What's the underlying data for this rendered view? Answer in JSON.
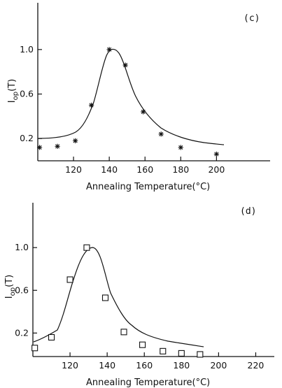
{
  "chart_data": [
    {
      "type": "scatter",
      "panel_label": "(c)",
      "xlabel": "Annealing Temperature(°C)",
      "ylabel_main": "I",
      "ylabel_sub": "op",
      "ylabel_tail": "(T)",
      "xlim": [
        100,
        230
      ],
      "ylim": [
        0.0,
        1.42
      ],
      "xticks": [
        120,
        140,
        160,
        180,
        200
      ],
      "yticks": [
        0.2,
        0.6,
        1.0
      ],
      "ytick_labels": [
        "0.2",
        "0.6",
        "1.0"
      ],
      "marker": "star",
      "x": [
        101,
        111,
        121,
        130,
        140,
        149,
        159,
        169,
        180,
        200
      ],
      "y": [
        0.12,
        0.13,
        0.18,
        0.5,
        1.0,
        0.86,
        0.44,
        0.24,
        0.12,
        0.06
      ]
    },
    {
      "type": "scatter",
      "panel_label": "(d)",
      "xlabel": "Annealing Temperature(°C)",
      "ylabel_main": "I",
      "ylabel_sub": "op",
      "ylabel_tail": "(T)",
      "xlim": [
        100,
        230
      ],
      "ylim": [
        -0.02,
        1.42
      ],
      "xticks": [
        120,
        140,
        160,
        180,
        200,
        220
      ],
      "yticks": [
        0.2,
        0.6,
        1.0
      ],
      "ytick_labels": [
        "0.2",
        "0.6",
        "1.0"
      ],
      "marker": "square",
      "x": [
        101,
        110,
        120,
        129,
        139,
        149,
        159,
        170,
        180,
        190
      ],
      "y": [
        0.06,
        0.16,
        0.7,
        1.0,
        0.53,
        0.21,
        0.09,
        0.03,
        0.01,
        0.0
      ]
    }
  ]
}
